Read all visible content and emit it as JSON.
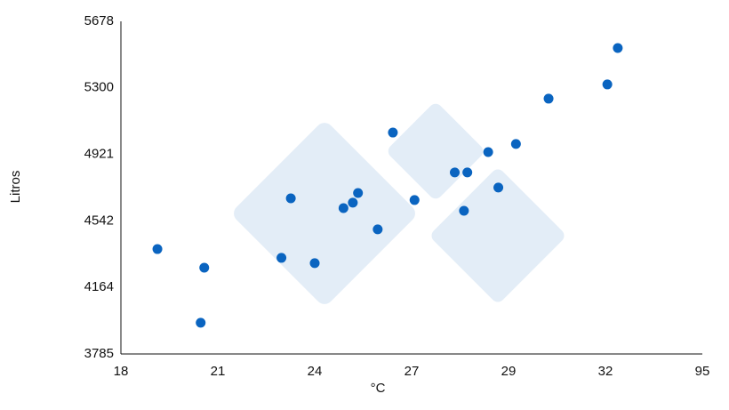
{
  "chart_data": {
    "type": "scatter",
    "x_label": "°C",
    "y_label": "Litros",
    "series": [
      {
        "color": "#0a64c0",
        "x": [
          19.13,
          20.58,
          20.47,
          22.97,
          23.26,
          24.0,
          24.89,
          25.18,
          25.34,
          25.95,
          26.42,
          27.06,
          27.89,
          28.15,
          28.08,
          28.58,
          28.79,
          29.23,
          30.24,
          33.24,
          40.03
        ],
        "values": [
          4382,
          4276,
          3963,
          4332,
          4671,
          4302,
          4615,
          4646,
          4701,
          4494,
          5045,
          4661,
          4818,
          4818,
          4600,
          4934,
          4732,
          4980,
          5238,
          5319,
          5526
        ]
      }
    ],
    "xlim": [
      18,
      95
    ],
    "xticks": [
      18,
      21,
      24,
      27,
      29,
      32,
      95
    ],
    "ylim": [
      3785,
      5678
    ],
    "yticks": [
      3785,
      4164,
      4542,
      4921,
      5300,
      5678
    ],
    "grid": false
  }
}
